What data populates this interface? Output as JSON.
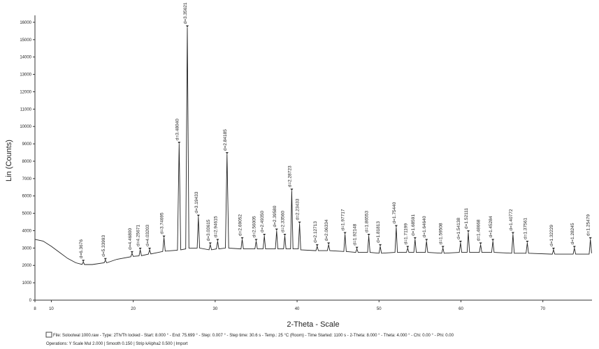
{
  "chart_data": {
    "type": "line",
    "x_label": "2-Theta - Scale",
    "y_label": "Lin (Counts)",
    "color": "#222222",
    "xlim": [
      8,
      76
    ],
    "ylim": [
      0,
      16400
    ],
    "xticks": [
      8,
      10,
      20,
      30,
      40,
      50,
      60,
      70
    ],
    "yticks": [
      0,
      1000,
      2000,
      3000,
      4000,
      5000,
      6000,
      7000,
      8000,
      9000,
      10000,
      11000,
      12000,
      13000,
      14000,
      15000,
      16000
    ],
    "x": [
      8,
      9,
      10,
      11,
      12,
      13,
      13.75,
      13.9,
      14.05,
      15,
      16.45,
      16.6,
      16.75,
      18,
      19.7,
      19.85,
      20,
      20.7,
      20.85,
      21,
      21.85,
      22,
      22.15,
      23.6,
      23.75,
      23.9,
      25.4,
      25.6,
      25.8,
      26.4,
      26.6,
      26.8,
      27.8,
      27.95,
      28.1,
      29.25,
      29.4,
      29.55,
      30.15,
      30.3,
      30.45,
      31.25,
      31.45,
      31.65,
      33.15,
      33.3,
      33.45,
      34.85,
      35,
      35.15,
      35.85,
      36,
      36.15,
      37.35,
      37.5,
      37.65,
      38.35,
      38.5,
      38.65,
      39.2,
      39.35,
      39.5,
      40.15,
      40.3,
      40.45,
      42.3,
      42.45,
      42.6,
      43.7,
      43.85,
      44,
      45.7,
      45.85,
      46,
      47.15,
      47.3,
      47.45,
      48.6,
      48.75,
      48.9,
      50,
      50.15,
      50.3,
      51.95,
      52.1,
      52.25,
      53.35,
      53.5,
      53.65,
      54.25,
      54.4,
      54.55,
      55.65,
      55.8,
      55.95,
      57.65,
      57.8,
      57.95,
      59.8,
      59.95,
      60.1,
      60.75,
      60.9,
      61.05,
      62.25,
      62.4,
      62.55,
      63.75,
      63.9,
      64.05,
      66.2,
      66.35,
      66.5,
      67.95,
      68.1,
      68.25,
      71.15,
      71.3,
      71.45,
      73.7,
      73.85,
      74,
      75.65,
      75.8,
      75.95
    ],
    "values": [
      3500,
      3400,
      3100,
      2750,
      2400,
      2150,
      2060,
      2200,
      2050,
      2050,
      2150,
      2300,
      2150,
      2350,
      2500,
      2700,
      2520,
      2550,
      2900,
      2560,
      2650,
      2900,
      2660,
      2800,
      3600,
      2820,
      2880,
      9000,
      2900,
      2950,
      15700,
      3000,
      3000,
      4800,
      3000,
      2900,
      3200,
      2900,
      2950,
      3400,
      2950,
      3000,
      8400,
      3000,
      2950,
      3500,
      2950,
      2950,
      3400,
      2950,
      2950,
      3700,
      2950,
      2950,
      4000,
      2950,
      2950,
      3700,
      2950,
      2950,
      6300,
      2950,
      2950,
      4400,
      2900,
      2850,
      3100,
      2850,
      2850,
      3200,
      2850,
      2800,
      3800,
      2800,
      2750,
      2950,
      2750,
      2750,
      3700,
      2750,
      2700,
      3100,
      2700,
      2750,
      4200,
      2750,
      2750,
      3000,
      2750,
      2750,
      3500,
      2750,
      2750,
      3400,
      2750,
      2700,
      3000,
      2700,
      2750,
      3300,
      2750,
      2750,
      3900,
      2750,
      2750,
      3200,
      2750,
      2750,
      3400,
      2750,
      2700,
      3800,
      2700,
      2700,
      3300,
      2700,
      2650,
      2900,
      2650,
      2650,
      3000,
      2650,
      2650,
      3500,
      2700
    ],
    "peaks": {
      "x": [
        13.9,
        16.6,
        19.85,
        20.85,
        22,
        23.75,
        25.6,
        26.6,
        27.95,
        29.4,
        30.3,
        31.45,
        33.3,
        35,
        36,
        37.5,
        38.5,
        39.35,
        40.3,
        42.45,
        43.85,
        45.85,
        47.3,
        48.75,
        50.15,
        52.1,
        53.5,
        54.4,
        55.8,
        57.8,
        59.95,
        60.9,
        62.4,
        63.9,
        66.35,
        68.1,
        71.3,
        73.85,
        75.8
      ],
      "values": [
        2200,
        2300,
        2700,
        2900,
        2900,
        3600,
        9000,
        15700,
        4800,
        3200,
        3400,
        8400,
        3500,
        3400,
        3700,
        4000,
        3700,
        6300,
        4400,
        3100,
        3200,
        3800,
        2950,
        3700,
        3100,
        4200,
        3000,
        3500,
        3400,
        3000,
        3300,
        3900,
        3200,
        3400,
        3800,
        3300,
        2900,
        3000,
        3500
      ],
      "labels": [
        "d=6.3676",
        "d=5.33993",
        "d=4.46800",
        "d=4.25671",
        "d=4.03203",
        "d=3.74695",
        "d=3.48040",
        "d=3.35621",
        "d=3.19433",
        "d=3.03615",
        "d=2.94615",
        "d=2.84185",
        "d=2.69052",
        "d=2.56005",
        "d=2.49350",
        "d=2.39580",
        "d=2.33560",
        "d=2.28723",
        "d=2.23433",
        "d=2.12713",
        "d=2.06334",
        "d=1.97717",
        "d=1.92148",
        "d=1.86553",
        "d=1.81813",
        "d=1.75440",
        "d=1.71199",
        "d=1.68591",
        "d=1.64640",
        "d=1.59508",
        "d=1.54138",
        "d=1.52111",
        "d=1.48668",
        "d=1.45284",
        "d=1.40772",
        "d=1.37561",
        "d=1.32229",
        "d=1.28245",
        "d=1.25479"
      ]
    }
  },
  "footer": [
    "File: Soloolwal 1000.raw - Type: 2Th/Th locked - Start: 8.000 ° - End: 75.699 ° - Step: 0.007 ° - Step time: 30.6 s - Temp.: 25 °C (Room) - Time Started: 1100 s - 2-Theta: 8.000 ° - Theta: 4.000 ° - Chi: 0.00 ° - Phi: 0.00",
    "Operations: Y Scale Mul 2.000 | Smooth 0.150 | Strip kAlpha2 0.500 | Import"
  ]
}
